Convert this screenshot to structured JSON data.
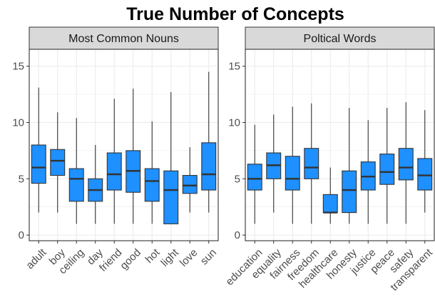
{
  "chart_data": {
    "type": "boxplot",
    "title": "True Number of Concepts",
    "xlabel": "",
    "ylabel": "",
    "ylim": [
      -0.5,
      16.5
    ],
    "yticks": [
      0,
      5,
      10,
      15
    ],
    "grid": true,
    "colors": {
      "box_fill": "#1E90FF",
      "strip_fill": "#D9D9D9",
      "panel_border": "#333333",
      "grid": "#EBEBEB"
    },
    "panels": [
      {
        "name": "Most Common Nouns",
        "categories": [
          "adult",
          "boy",
          "ceiling",
          "day",
          "friend",
          "good",
          "hot",
          "light",
          "love",
          "sun"
        ],
        "boxes": [
          {
            "min": 2,
            "q1": 4.6,
            "median": 6,
            "q3": 8,
            "max": 13.1
          },
          {
            "min": 2,
            "q1": 5.3,
            "median": 6.6,
            "q3": 7.6,
            "max": 10.9
          },
          {
            "min": 1,
            "q1": 3,
            "median": 5,
            "q3": 5.9,
            "max": 10.4
          },
          {
            "min": 1,
            "q1": 3,
            "median": 4,
            "q3": 5,
            "max": 8
          },
          {
            "min": 1,
            "q1": 4,
            "median": 5.4,
            "q3": 7.3,
            "max": 12.1
          },
          {
            "min": 1,
            "q1": 3.8,
            "median": 5.7,
            "q3": 7.5,
            "max": 13
          },
          {
            "min": 1,
            "q1": 3,
            "median": 4.8,
            "q3": 5.9,
            "max": 10.1
          },
          {
            "min": 1,
            "q1": 1,
            "median": 4,
            "q3": 5.7,
            "max": 12.7
          },
          {
            "min": 2,
            "q1": 3.7,
            "median": 4.4,
            "q3": 5.3,
            "max": 7.8
          },
          {
            "min": 2,
            "q1": 4,
            "median": 5.4,
            "q3": 8.2,
            "max": 14.5
          }
        ]
      },
      {
        "name": "Poltical Words",
        "categories": [
          "education",
          "equality",
          "fairness",
          "freedom",
          "healthcare",
          "honesty",
          "justice",
          "peace",
          "safety",
          "transparent"
        ],
        "boxes": [
          {
            "min": 1,
            "q1": 4,
            "median": 5,
            "q3": 6.3,
            "max": 9.8
          },
          {
            "min": 2,
            "q1": 5,
            "median": 6.2,
            "q3": 7.3,
            "max": 10.7
          },
          {
            "min": 1,
            "q1": 4,
            "median": 5,
            "q3": 7,
            "max": 11.4
          },
          {
            "min": 1,
            "q1": 5,
            "median": 6,
            "q3": 7.7,
            "max": 11.7
          },
          {
            "min": 1,
            "q1": 2,
            "median": 2,
            "q3": 3.6,
            "max": 6
          },
          {
            "min": 1,
            "q1": 2,
            "median": 4,
            "q3": 5.7,
            "max": 11.3
          },
          {
            "min": 1,
            "q1": 4,
            "median": 5.2,
            "q3": 6.5,
            "max": 10.2
          },
          {
            "min": 1,
            "q1": 4.5,
            "median": 5.6,
            "q3": 7.2,
            "max": 11.3
          },
          {
            "min": 1,
            "q1": 4.9,
            "median": 6,
            "q3": 7.7,
            "max": 11.8
          },
          {
            "min": 2,
            "q1": 4,
            "median": 5.3,
            "q3": 6.8,
            "max": 11.1
          }
        ]
      }
    ]
  }
}
